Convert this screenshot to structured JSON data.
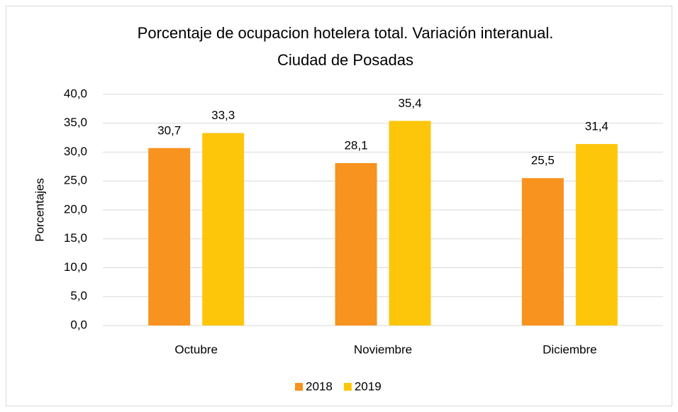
{
  "chart_data": {
    "type": "bar",
    "title": [
      "Porcentaje de ocupacion hotelera total. Variación interanual.",
      "Ciudad de Posadas"
    ],
    "y_label": "Porcentajes",
    "categories": [
      "Octubre",
      "Noviembre",
      "Diciembre"
    ],
    "series": [
      {
        "name": "2018",
        "color": "#f7931e",
        "values": [
          30.7,
          28.1,
          25.5
        ],
        "value_labels": [
          "30,7",
          "28,1",
          "25,5"
        ]
      },
      {
        "name": "2019",
        "color": "#fec60b",
        "values": [
          33.3,
          35.4,
          31.4
        ],
        "value_labels": [
          "33,3",
          "35,4",
          "31,4"
        ]
      }
    ],
    "ylim": [
      0,
      40
    ],
    "yticks": [
      {
        "value": 0,
        "label": "0,0"
      },
      {
        "value": 5,
        "label": "5,0"
      },
      {
        "value": 10,
        "label": "10,0"
      },
      {
        "value": 15,
        "label": "15,0"
      },
      {
        "value": 20,
        "label": "20,0"
      },
      {
        "value": 25,
        "label": "25,0"
      },
      {
        "value": 30,
        "label": "30,0"
      },
      {
        "value": 35,
        "label": "35,0"
      },
      {
        "value": 40,
        "label": "40,0"
      }
    ],
    "grid": true,
    "legend": "bottom"
  }
}
